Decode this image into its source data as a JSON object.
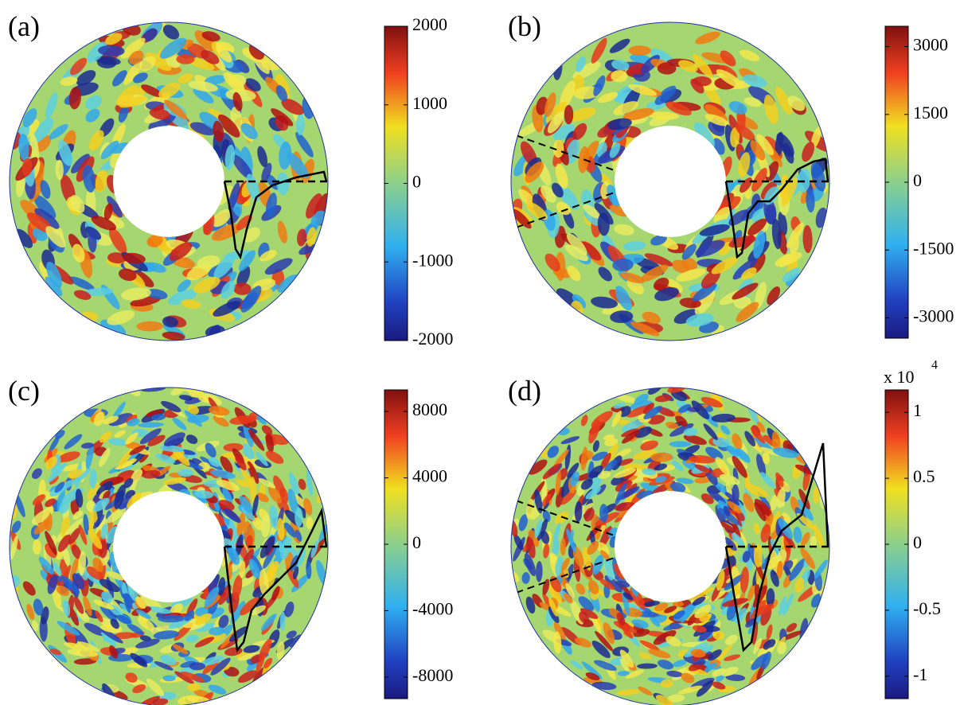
{
  "panels": [
    {
      "label": "(a)",
      "colorbar": {
        "lim": [
          -2000,
          2000
        ],
        "ticks": [
          -2000,
          -1000,
          0,
          1000,
          2000
        ]
      }
    },
    {
      "label": "(b)",
      "colorbar": {
        "lim": [
          -3450,
          3450
        ],
        "ticks": [
          -3000,
          -1500,
          0,
          1500,
          3000
        ]
      }
    },
    {
      "label": "(c)",
      "colorbar": {
        "lim": [
          -9300,
          9300
        ],
        "ticks": [
          -8000,
          -4000,
          0,
          4000,
          8000
        ]
      }
    },
    {
      "label": "(d)",
      "colorbar": {
        "multiplier": {
          "base": "x 10",
          "exponent": "4"
        },
        "lim": [
          -1.17,
          1.17
        ],
        "ticks": [
          -1,
          -0.5,
          0,
          0.5,
          1
        ]
      }
    }
  ]
}
